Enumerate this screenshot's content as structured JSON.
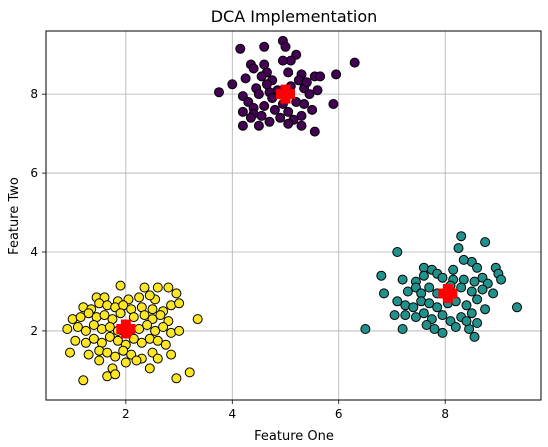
{
  "chart_data": {
    "type": "scatter",
    "title": "DCA Implementation",
    "xlabel": "Feature One",
    "ylabel": "Feature Two",
    "xlim": [
      0.5,
      9.8
    ],
    "ylim": [
      0.25,
      9.6
    ],
    "xticks": [
      2,
      4,
      6,
      8
    ],
    "yticks": [
      2,
      4,
      6,
      8
    ],
    "grid": true,
    "series": [
      {
        "color": "#440154",
        "points": [
          [
            4.15,
            9.15
          ],
          [
            4.6,
            9.2
          ],
          [
            4.95,
            9.35
          ],
          [
            5.0,
            9.2
          ],
          [
            5.2,
            9.0
          ],
          [
            5.1,
            8.85
          ],
          [
            4.95,
            8.85
          ],
          [
            4.6,
            8.75
          ],
          [
            4.35,
            8.75
          ],
          [
            4.4,
            8.65
          ],
          [
            4.65,
            8.55
          ],
          [
            5.3,
            8.5
          ],
          [
            5.55,
            8.45
          ],
          [
            5.65,
            8.45
          ],
          [
            5.95,
            8.5
          ],
          [
            6.3,
            8.8
          ],
          [
            4.0,
            8.25
          ],
          [
            3.75,
            8.05
          ],
          [
            4.55,
            8.45
          ],
          [
            4.75,
            8.35
          ],
          [
            5.05,
            8.55
          ],
          [
            5.25,
            8.35
          ],
          [
            5.35,
            8.15
          ],
          [
            5.45,
            8.0
          ],
          [
            4.45,
            8.15
          ],
          [
            4.5,
            8.0
          ],
          [
            4.7,
            8.05
          ],
          [
            4.85,
            8.1
          ],
          [
            5.1,
            8.2
          ],
          [
            5.6,
            8.1
          ],
          [
            4.2,
            7.95
          ],
          [
            4.3,
            7.8
          ],
          [
            4.4,
            7.65
          ],
          [
            4.6,
            7.7
          ],
          [
            4.75,
            7.9
          ],
          [
            4.95,
            7.75
          ],
          [
            5.2,
            7.8
          ],
          [
            5.35,
            7.75
          ],
          [
            5.5,
            7.6
          ],
          [
            5.9,
            7.75
          ],
          [
            4.2,
            7.55
          ],
          [
            4.4,
            7.5
          ],
          [
            4.55,
            7.45
          ],
          [
            4.8,
            7.6
          ],
          [
            5.05,
            7.55
          ],
          [
            5.15,
            7.35
          ],
          [
            5.3,
            7.45
          ],
          [
            4.2,
            7.2
          ],
          [
            4.5,
            7.2
          ],
          [
            4.7,
            7.3
          ],
          [
            5.05,
            7.25
          ],
          [
            5.3,
            7.2
          ],
          [
            5.55,
            7.05
          ],
          [
            4.35,
            7.4
          ],
          [
            4.9,
            7.4
          ],
          [
            4.65,
            8.25
          ],
          [
            5.4,
            8.3
          ],
          [
            4.25,
            8.4
          ]
        ]
      },
      {
        "color": "#21918c",
        "points": [
          [
            8.3,
            4.4
          ],
          [
            8.75,
            4.25
          ],
          [
            7.1,
            4.0
          ],
          [
            8.25,
            4.1
          ],
          [
            8.5,
            3.75
          ],
          [
            8.35,
            3.8
          ],
          [
            8.6,
            3.6
          ],
          [
            8.95,
            3.6
          ],
          [
            9.0,
            3.45
          ],
          [
            8.15,
            3.55
          ],
          [
            7.6,
            3.6
          ],
          [
            7.75,
            3.55
          ],
          [
            6.8,
            3.4
          ],
          [
            7.2,
            3.3
          ],
          [
            7.45,
            3.25
          ],
          [
            7.6,
            3.4
          ],
          [
            7.85,
            3.45
          ],
          [
            7.95,
            3.35
          ],
          [
            8.15,
            3.3
          ],
          [
            8.35,
            3.3
          ],
          [
            8.55,
            3.25
          ],
          [
            8.7,
            3.35
          ],
          [
            8.8,
            3.2
          ],
          [
            9.05,
            3.3
          ],
          [
            6.85,
            2.95
          ],
          [
            7.3,
            3.0
          ],
          [
            7.45,
            3.1
          ],
          [
            7.55,
            2.95
          ],
          [
            7.7,
            3.1
          ],
          [
            7.85,
            2.95
          ],
          [
            8.1,
            3.15
          ],
          [
            8.3,
            3.1
          ],
          [
            8.5,
            3.0
          ],
          [
            8.7,
            3.05
          ],
          [
            8.9,
            2.95
          ],
          [
            7.1,
            2.75
          ],
          [
            7.25,
            2.65
          ],
          [
            7.4,
            2.6
          ],
          [
            7.55,
            2.75
          ],
          [
            7.7,
            2.7
          ],
          [
            7.85,
            2.6
          ],
          [
            8.05,
            2.7
          ],
          [
            8.2,
            2.75
          ],
          [
            8.4,
            2.65
          ],
          [
            8.6,
            2.8
          ],
          [
            8.75,
            2.55
          ],
          [
            9.35,
            2.6
          ],
          [
            7.05,
            2.4
          ],
          [
            7.25,
            2.4
          ],
          [
            7.45,
            2.35
          ],
          [
            7.6,
            2.45
          ],
          [
            7.75,
            2.3
          ],
          [
            7.95,
            2.4
          ],
          [
            8.1,
            2.25
          ],
          [
            8.3,
            2.35
          ],
          [
            8.5,
            2.45
          ],
          [
            8.6,
            2.2
          ],
          [
            8.45,
            2.05
          ],
          [
            7.2,
            2.05
          ],
          [
            7.65,
            2.15
          ],
          [
            7.95,
            1.95
          ],
          [
            8.2,
            2.1
          ],
          [
            8.4,
            2.25
          ],
          [
            8.55,
            1.85
          ],
          [
            6.5,
            2.05
          ],
          [
            7.8,
            2.05
          ]
        ]
      },
      {
        "color": "#fde725",
        "points": [
          [
            1.9,
            3.15
          ],
          [
            2.35,
            3.1
          ],
          [
            2.6,
            3.1
          ],
          [
            2.8,
            3.1
          ],
          [
            2.95,
            2.95
          ],
          [
            1.45,
            2.85
          ],
          [
            1.6,
            2.85
          ],
          [
            1.85,
            2.75
          ],
          [
            2.05,
            2.8
          ],
          [
            2.25,
            2.85
          ],
          [
            2.55,
            2.8
          ],
          [
            2.45,
            2.9
          ],
          [
            1.2,
            2.6
          ],
          [
            1.35,
            2.55
          ],
          [
            1.5,
            2.7
          ],
          [
            1.65,
            2.65
          ],
          [
            1.8,
            2.6
          ],
          [
            1.95,
            2.65
          ],
          [
            2.1,
            2.55
          ],
          [
            2.3,
            2.6
          ],
          [
            2.5,
            2.55
          ],
          [
            2.7,
            2.5
          ],
          [
            2.85,
            2.65
          ],
          [
            3.0,
            2.7
          ],
          [
            1.0,
            2.3
          ],
          [
            1.15,
            2.35
          ],
          [
            1.3,
            2.45
          ],
          [
            1.45,
            2.35
          ],
          [
            1.6,
            2.4
          ],
          [
            1.75,
            2.3
          ],
          [
            1.9,
            2.45
          ],
          [
            2.15,
            2.35
          ],
          [
            2.35,
            2.4
          ],
          [
            2.5,
            2.3
          ],
          [
            2.65,
            2.4
          ],
          [
            2.8,
            2.25
          ],
          [
            3.35,
            2.3
          ],
          [
            0.9,
            2.05
          ],
          [
            1.1,
            2.1
          ],
          [
            1.25,
            2.0
          ],
          [
            1.4,
            2.15
          ],
          [
            1.55,
            2.05
          ],
          [
            1.7,
            2.1
          ],
          [
            1.85,
            2.0
          ],
          [
            2.25,
            2.05
          ],
          [
            2.4,
            2.15
          ],
          [
            2.55,
            2.0
          ],
          [
            2.7,
            2.1
          ],
          [
            2.85,
            1.95
          ],
          [
            3.0,
            2.0
          ],
          [
            1.05,
            1.75
          ],
          [
            1.25,
            1.7
          ],
          [
            1.4,
            1.8
          ],
          [
            1.55,
            1.7
          ],
          [
            1.7,
            1.85
          ],
          [
            1.85,
            1.75
          ],
          [
            2.0,
            1.65
          ],
          [
            2.15,
            1.8
          ],
          [
            2.3,
            1.7
          ],
          [
            2.45,
            1.8
          ],
          [
            2.6,
            1.75
          ],
          [
            2.75,
            1.65
          ],
          [
            0.95,
            1.45
          ],
          [
            1.3,
            1.4
          ],
          [
            1.5,
            1.5
          ],
          [
            1.65,
            1.45
          ],
          [
            1.8,
            1.35
          ],
          [
            1.95,
            1.5
          ],
          [
            2.1,
            1.4
          ],
          [
            2.3,
            1.3
          ],
          [
            2.5,
            1.45
          ],
          [
            2.6,
            1.3
          ],
          [
            2.85,
            1.4
          ],
          [
            1.5,
            1.25
          ],
          [
            2.0,
            1.2
          ],
          [
            2.2,
            1.25
          ],
          [
            1.75,
            1.05
          ],
          [
            2.45,
            1.05
          ],
          [
            1.65,
            0.85
          ],
          [
            1.8,
            0.9
          ],
          [
            1.2,
            0.75
          ],
          [
            2.95,
            0.8
          ],
          [
            3.2,
            0.95
          ]
        ]
      }
    ],
    "centroids": {
      "color": "#ff0000",
      "points": [
        [
          5.0,
          8.0
        ],
        [
          8.05,
          2.95
        ],
        [
          2.0,
          2.05
        ]
      ]
    }
  }
}
